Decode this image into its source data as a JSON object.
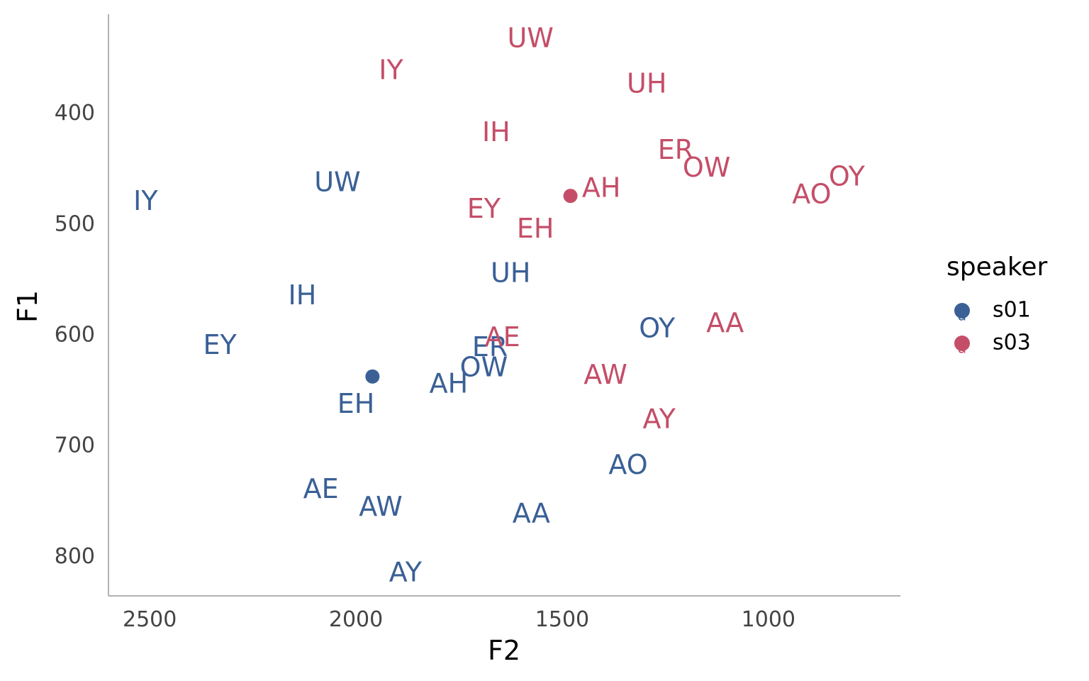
{
  "colors": {
    "s01": "#3A6096",
    "s03": "#C44E68",
    "axis": "#999999"
  },
  "chart_data": {
    "type": "scatter",
    "xlabel": "F2",
    "ylabel": "F1",
    "x_reversed": true,
    "y_reversed": true,
    "xlim": [
      2600,
      680
    ],
    "ylim": [
      310,
      835
    ],
    "xticks": [
      2500,
      2000,
      1500,
      1000
    ],
    "yticks": [
      400,
      500,
      600,
      700,
      800
    ],
    "legend": {
      "title": "speaker",
      "position": "right",
      "entries": [
        "s01",
        "s03"
      ]
    },
    "series": [
      {
        "name": "s01",
        "labels": [
          {
            "text": "IY",
            "x": 2510,
            "y": 480
          },
          {
            "text": "UW",
            "x": 2045,
            "y": 463
          },
          {
            "text": "IH",
            "x": 2130,
            "y": 565
          },
          {
            "text": "EY",
            "x": 2330,
            "y": 610
          },
          {
            "text": "EH",
            "x": 2000,
            "y": 663
          },
          {
            "text": "AE",
            "x": 2085,
            "y": 740
          },
          {
            "text": "AW",
            "x": 1940,
            "y": 756
          },
          {
            "text": "AY",
            "x": 1880,
            "y": 815
          },
          {
            "text": "AA",
            "x": 1575,
            "y": 762
          },
          {
            "text": "AO",
            "x": 1340,
            "y": 718
          },
          {
            "text": "OY",
            "x": 1270,
            "y": 595
          },
          {
            "text": "UH",
            "x": 1625,
            "y": 545
          },
          {
            "text": "ER",
            "x": 1675,
            "y": 612
          },
          {
            "text": "OW",
            "x": 1690,
            "y": 630
          },
          {
            "text": "AH",
            "x": 1775,
            "y": 645
          }
        ],
        "mean": {
          "x": 1960,
          "y": 637
        }
      },
      {
        "name": "s03",
        "labels": [
          {
            "text": "UW",
            "x": 1577,
            "y": 333
          },
          {
            "text": "IY",
            "x": 1915,
            "y": 362
          },
          {
            "text": "UH",
            "x": 1295,
            "y": 374
          },
          {
            "text": "IH",
            "x": 1660,
            "y": 418
          },
          {
            "text": "ER",
            "x": 1225,
            "y": 434
          },
          {
            "text": "OW",
            "x": 1150,
            "y": 450
          },
          {
            "text": "OY",
            "x": 810,
            "y": 458
          },
          {
            "text": "AH",
            "x": 1405,
            "y": 468
          },
          {
            "text": "AO",
            "x": 895,
            "y": 474
          },
          {
            "text": "EY",
            "x": 1690,
            "y": 487
          },
          {
            "text": "EH",
            "x": 1565,
            "y": 505
          },
          {
            "text": "AA",
            "x": 1105,
            "y": 590
          },
          {
            "text": "AE",
            "x": 1645,
            "y": 603
          },
          {
            "text": "AW",
            "x": 1395,
            "y": 637
          },
          {
            "text": "AY",
            "x": 1265,
            "y": 677
          }
        ],
        "mean": {
          "x": 1480,
          "y": 474
        }
      }
    ]
  }
}
